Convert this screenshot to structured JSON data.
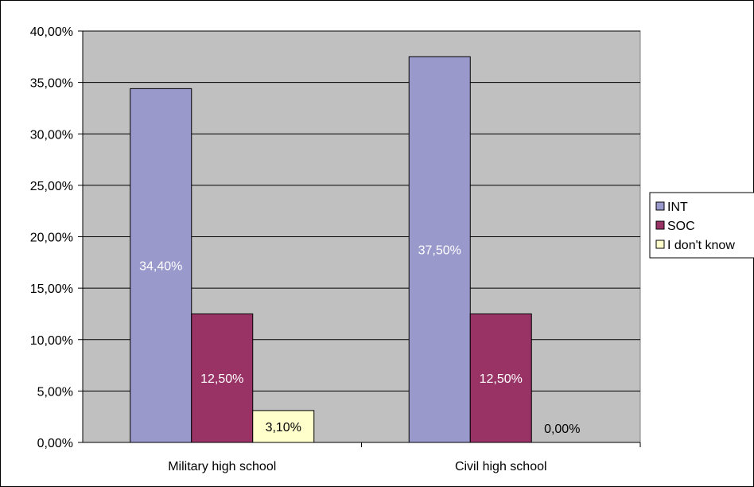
{
  "chart_data": {
    "type": "bar",
    "categories": [
      "Military high school",
      "Civil high school"
    ],
    "series": [
      {
        "name": "INT",
        "values": [
          34.4,
          37.5
        ],
        "labels": [
          "34,40%",
          "37,50%"
        ],
        "color": "#9999cc",
        "label_color": "#ffffff"
      },
      {
        "name": "SOC",
        "values": [
          12.5,
          12.5
        ],
        "labels": [
          "12,50%",
          "12,50%"
        ],
        "color": "#993366",
        "label_color": "#ffffff"
      },
      {
        "name": "I don't know",
        "values": [
          3.1,
          0.0
        ],
        "labels": [
          "3,10%",
          "0,00%"
        ],
        "color": "#ffffcc",
        "label_color": "#000000"
      }
    ],
    "yticks": [
      "0,00%",
      "5,00%",
      "10,00%",
      "15,00%",
      "20,00%",
      "25,00%",
      "30,00%",
      "35,00%",
      "40,00%"
    ],
    "ylim": [
      0,
      40
    ],
    "title": "",
    "xlabel": "",
    "ylabel": "",
    "grid": true,
    "legend_position": "right",
    "plot_background": "#c0c0c0",
    "gridline_color": "#000000"
  }
}
